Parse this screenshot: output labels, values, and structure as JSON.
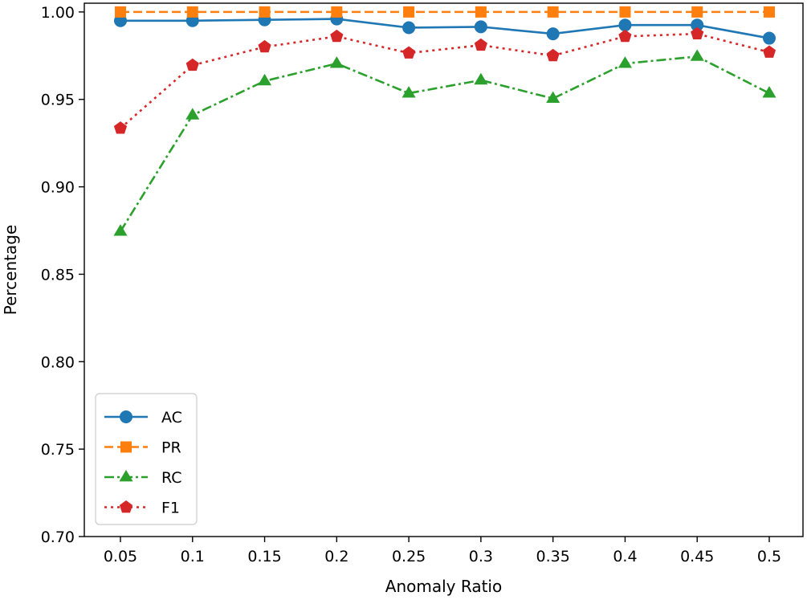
{
  "chart_data": {
    "type": "line",
    "title": "",
    "xlabel": "Anomaly Ratio",
    "ylabel": "Percentage",
    "categories": [
      "0.05",
      "0.1",
      "0.15",
      "0.2",
      "0.25",
      "0.3",
      "0.35",
      "0.4",
      "0.45",
      "0.5"
    ],
    "ylim": [
      0.7,
      1.005
    ],
    "yticks": [
      "0.70",
      "0.75",
      "0.80",
      "0.85",
      "0.90",
      "0.95",
      "1.00"
    ],
    "grid": false,
    "legend_position": "lower-left",
    "series": [
      {
        "name": "AC",
        "color": "#1f77b4",
        "dash": "solid",
        "marker": "circle",
        "values": [
          0.995,
          0.995,
          0.9955,
          0.996,
          0.991,
          0.9915,
          0.9875,
          0.9925,
          0.9925,
          0.985
        ]
      },
      {
        "name": "PR",
        "color": "#ff7f0e",
        "dash": "dashed",
        "marker": "square",
        "values": [
          1.0,
          1.0,
          1.0,
          1.0,
          1.0,
          1.0,
          1.0,
          1.0,
          1.0,
          1.0
        ]
      },
      {
        "name": "RC",
        "color": "#2ca02c",
        "dash": "dashdot",
        "marker": "triangle",
        "values": [
          0.8745,
          0.941,
          0.9605,
          0.9705,
          0.9535,
          0.961,
          0.9505,
          0.9705,
          0.9745,
          0.9535
        ]
      },
      {
        "name": "F1",
        "color": "#d62728",
        "dash": "dotted",
        "marker": "pentagon",
        "values": [
          0.9335,
          0.9695,
          0.98,
          0.986,
          0.9765,
          0.981,
          0.975,
          0.986,
          0.9875,
          0.977
        ]
      }
    ]
  }
}
